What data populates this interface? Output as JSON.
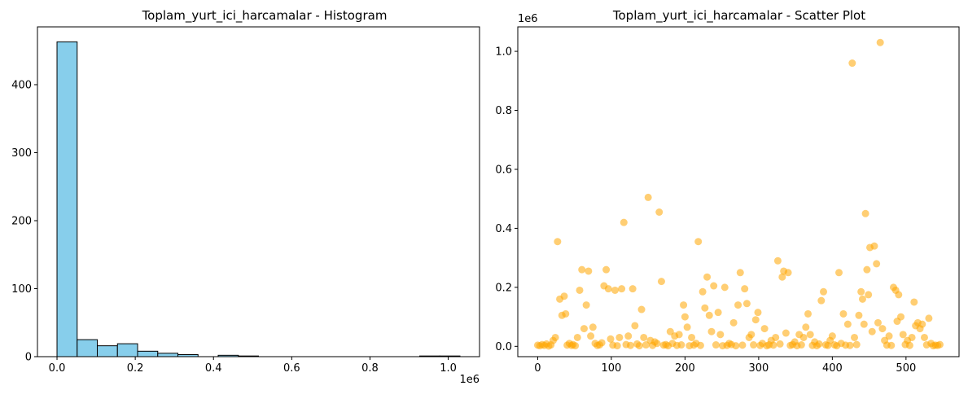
{
  "chart_data": [
    {
      "type": "bar",
      "subtype": "histogram",
      "title": "Toplam_yurt_ici_harcamalar - Histogram",
      "xlabel": "",
      "ylabel": "",
      "x_offset_text": "1e6",
      "xlim": [
        -0.05,
        1.08
      ],
      "ylim": [
        0,
        485
      ],
      "grid": false,
      "bar_color": "#87ceeb",
      "edge_color": "#000000",
      "bins": [
        {
          "x0": 0.0,
          "x1": 0.0515,
          "count": 463
        },
        {
          "x0": 0.0515,
          "x1": 0.103,
          "count": 25
        },
        {
          "x0": 0.103,
          "x1": 0.1545,
          "count": 16
        },
        {
          "x0": 0.1545,
          "x1": 0.206,
          "count": 19
        },
        {
          "x0": 0.206,
          "x1": 0.2575,
          "count": 8
        },
        {
          "x0": 0.2575,
          "x1": 0.309,
          "count": 5
        },
        {
          "x0": 0.309,
          "x1": 0.3605,
          "count": 3
        },
        {
          "x0": 0.3605,
          "x1": 0.412,
          "count": 0
        },
        {
          "x0": 0.412,
          "x1": 0.4635,
          "count": 2
        },
        {
          "x0": 0.4635,
          "x1": 0.515,
          "count": 1
        },
        {
          "x0": 0.515,
          "x1": 0.5665,
          "count": 0
        },
        {
          "x0": 0.5665,
          "x1": 0.618,
          "count": 0
        },
        {
          "x0": 0.618,
          "x1": 0.6695,
          "count": 0
        },
        {
          "x0": 0.6695,
          "x1": 0.721,
          "count": 0
        },
        {
          "x0": 0.721,
          "x1": 0.7725,
          "count": 0
        },
        {
          "x0": 0.7725,
          "x1": 0.824,
          "count": 0
        },
        {
          "x0": 0.824,
          "x1": 0.8755,
          "count": 0
        },
        {
          "x0": 0.8755,
          "x1": 0.927,
          "count": 0
        },
        {
          "x0": 0.927,
          "x1": 0.9785,
          "count": 1
        },
        {
          "x0": 0.9785,
          "x1": 1.03,
          "count": 1
        }
      ],
      "x_ticks": [
        {
          "value": 0.0,
          "label": "0.0"
        },
        {
          "value": 0.2,
          "label": "0.2"
        },
        {
          "value": 0.4,
          "label": "0.4"
        },
        {
          "value": 0.6,
          "label": "0.6"
        },
        {
          "value": 0.8,
          "label": "0.8"
        },
        {
          "value": 1.0,
          "label": "1.0"
        }
      ],
      "y_ticks": [
        {
          "value": 0,
          "label": "0"
        },
        {
          "value": 100,
          "label": "100"
        },
        {
          "value": 200,
          "label": "200"
        },
        {
          "value": 300,
          "label": "300"
        },
        {
          "value": 400,
          "label": "400"
        }
      ]
    },
    {
      "type": "scatter",
      "title": "Toplam_yurt_ici_harcamalar - Scatter Plot",
      "xlabel": "",
      "ylabel": "",
      "y_offset_text": "1e6",
      "xlim": [
        -27,
        572
      ],
      "ylim": [
        -0.035,
        1.083
      ],
      "grid": false,
      "point_color": "#ffa500",
      "point_alpha": 0.55,
      "x_ticks": [
        {
          "value": 0,
          "label": "0"
        },
        {
          "value": 100,
          "label": "100"
        },
        {
          "value": 200,
          "label": "200"
        },
        {
          "value": 300,
          "label": "300"
        },
        {
          "value": 400,
          "label": "400"
        },
        {
          "value": 500,
          "label": "500"
        }
      ],
      "y_ticks": [
        {
          "value": 0.0,
          "label": "0.0"
        },
        {
          "value": 0.2,
          "label": "0.2"
        },
        {
          "value": 0.4,
          "label": "0.4"
        },
        {
          "value": 0.6,
          "label": "0.6"
        },
        {
          "value": 0.8,
          "label": "0.8"
        },
        {
          "value": 1.0,
          "label": "1.0"
        }
      ],
      "points": [
        [
          0,
          0.004
        ],
        [
          3,
          0.002
        ],
        [
          6,
          0.006
        ],
        [
          9,
          0.003
        ],
        [
          12,
          0.008
        ],
        [
          15,
          0.001
        ],
        [
          18,
          0.005
        ],
        [
          21,
          0.02
        ],
        [
          24,
          0.03
        ],
        [
          27,
          0.355
        ],
        [
          30,
          0.16
        ],
        [
          33,
          0.105
        ],
        [
          36,
          0.17
        ],
        [
          38,
          0.11
        ],
        [
          40,
          0.004
        ],
        [
          43,
          0.01
        ],
        [
          46,
          0.003
        ],
        [
          48,
          0.006
        ],
        [
          51,
          0.002
        ],
        [
          54,
          0.03
        ],
        [
          57,
          0.19
        ],
        [
          60,
          0.26
        ],
        [
          63,
          0.06
        ],
        [
          66,
          0.14
        ],
        [
          69,
          0.255
        ],
        [
          72,
          0.035
        ],
        [
          75,
          0.065
        ],
        [
          78,
          0.01
        ],
        [
          81,
          0.003
        ],
        [
          84,
          0.005
        ],
        [
          87,
          0.012
        ],
        [
          90,
          0.205
        ],
        [
          93,
          0.26
        ],
        [
          96,
          0.195
        ],
        [
          99,
          0.025
        ],
        [
          102,
          0.004
        ],
        [
          105,
          0.19
        ],
        [
          108,
          0.002
        ],
        [
          111,
          0.03
        ],
        [
          114,
          0.195
        ],
        [
          117,
          0.42
        ],
        [
          120,
          0.006
        ],
        [
          123,
          0.035
        ],
        [
          126,
          0.003
        ],
        [
          129,
          0.195
        ],
        [
          132,
          0.07
        ],
        [
          135,
          0.008
        ],
        [
          138,
          0.002
        ],
        [
          141,
          0.125
        ],
        [
          144,
          0.03
        ],
        [
          147,
          0.005
        ],
        [
          150,
          0.505
        ],
        [
          153,
          0.02
        ],
        [
          156,
          0.003
        ],
        [
          159,
          0.015
        ],
        [
          162,
          0.01
        ],
        [
          165,
          0.455
        ],
        [
          168,
          0.22
        ],
        [
          171,
          0.004
        ],
        [
          174,
          0.006
        ],
        [
          177,
          0.002
        ],
        [
          180,
          0.05
        ],
        [
          183,
          0.01
        ],
        [
          186,
          0.035
        ],
        [
          189,
          0.003
        ],
        [
          192,
          0.04
        ],
        [
          195,
          0.005
        ],
        [
          198,
          0.14
        ],
        [
          200,
          0.1
        ],
        [
          203,
          0.065
        ],
        [
          206,
          0.002
        ],
        [
          209,
          0.03
        ],
        [
          212,
          0.004
        ],
        [
          215,
          0.01
        ],
        [
          218,
          0.355
        ],
        [
          221,
          0.003
        ],
        [
          224,
          0.185
        ],
        [
          227,
          0.13
        ],
        [
          230,
          0.235
        ],
        [
          233,
          0.105
        ],
        [
          236,
          0.05
        ],
        [
          239,
          0.205
        ],
        [
          242,
          0.005
        ],
        [
          245,
          0.115
        ],
        [
          248,
          0.04
        ],
        [
          251,
          0.002
        ],
        [
          254,
          0.2
        ],
        [
          257,
          0.003
        ],
        [
          260,
          0.01
        ],
        [
          263,
          0.006
        ],
        [
          266,
          0.08
        ],
        [
          269,
          0.002
        ],
        [
          272,
          0.14
        ],
        [
          275,
          0.25
        ],
        [
          278,
          0.004
        ],
        [
          281,
          0.195
        ],
        [
          284,
          0.145
        ],
        [
          287,
          0.03
        ],
        [
          290,
          0.04
        ],
        [
          293,
          0.005
        ],
        [
          296,
          0.09
        ],
        [
          299,
          0.115
        ],
        [
          302,
          0.003
        ],
        [
          305,
          0.01
        ],
        [
          308,
          0.06
        ],
        [
          311,
          0.002
        ],
        [
          314,
          0.005
        ],
        [
          317,
          0.02
        ],
        [
          320,
          0.004
        ],
        [
          323,
          0.03
        ],
        [
          326,
          0.29
        ],
        [
          329,
          0.008
        ],
        [
          332,
          0.235
        ],
        [
          334,
          0.255
        ],
        [
          337,
          0.045
        ],
        [
          340,
          0.25
        ],
        [
          343,
          0.003
        ],
        [
          346,
          0.006
        ],
        [
          349,
          0.015
        ],
        [
          352,
          0.002
        ],
        [
          355,
          0.04
        ],
        [
          358,
          0.005
        ],
        [
          361,
          0.03
        ],
        [
          364,
          0.065
        ],
        [
          367,
          0.11
        ],
        [
          370,
          0.04
        ],
        [
          373,
          0.003
        ],
        [
          376,
          0.015
        ],
        [
          379,
          0.002
        ],
        [
          382,
          0.008
        ],
        [
          385,
          0.155
        ],
        [
          388,
          0.185
        ],
        [
          391,
          0.005
        ],
        [
          394,
          0.003
        ],
        [
          397,
          0.02
        ],
        [
          400,
          0.035
        ],
        [
          403,
          0.005
        ],
        [
          406,
          0.002
        ],
        [
          409,
          0.25
        ],
        [
          412,
          0.01
        ],
        [
          415,
          0.11
        ],
        [
          418,
          0.004
        ],
        [
          421,
          0.075
        ],
        [
          424,
          0.003
        ],
        [
          427,
          0.96
        ],
        [
          430,
          0.03
        ],
        [
          433,
          0.006
        ],
        [
          436,
          0.105
        ],
        [
          439,
          0.185
        ],
        [
          441,
          0.16
        ],
        [
          443,
          0.075
        ],
        [
          445,
          0.45
        ],
        [
          447,
          0.26
        ],
        [
          449,
          0.175
        ],
        [
          451,
          0.335
        ],
        [
          454,
          0.05
        ],
        [
          457,
          0.34
        ],
        [
          460,
          0.28
        ],
        [
          462,
          0.08
        ],
        [
          465,
          1.03
        ],
        [
          468,
          0.06
        ],
        [
          471,
          0.02
        ],
        [
          474,
          0.004
        ],
        [
          477,
          0.035
        ],
        [
          480,
          0.003
        ],
        [
          483,
          0.2
        ],
        [
          486,
          0.19
        ],
        [
          488,
          0.085
        ],
        [
          490,
          0.175
        ],
        [
          493,
          0.1
        ],
        [
          496,
          0.04
        ],
        [
          499,
          0.006
        ],
        [
          502,
          0.02
        ],
        [
          505,
          0.003
        ],
        [
          508,
          0.03
        ],
        [
          511,
          0.15
        ],
        [
          513,
          0.07
        ],
        [
          516,
          0.08
        ],
        [
          519,
          0.06
        ],
        [
          522,
          0.075
        ],
        [
          525,
          0.03
        ],
        [
          528,
          0.005
        ],
        [
          531,
          0.095
        ],
        [
          534,
          0.01
        ],
        [
          537,
          0.002
        ],
        [
          540,
          0.004
        ],
        [
          543,
          0.003
        ],
        [
          546,
          0.006
        ]
      ]
    }
  ]
}
